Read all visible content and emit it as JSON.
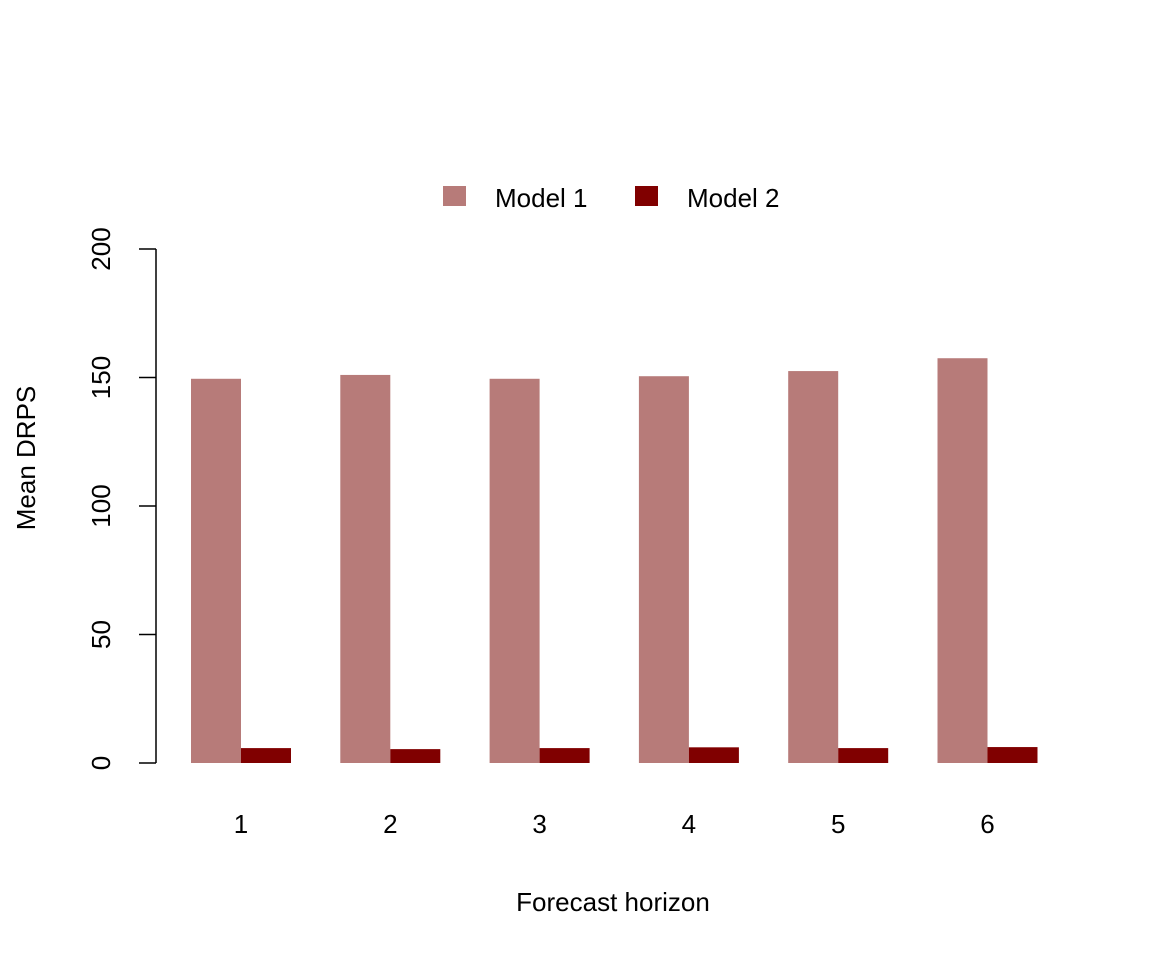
{
  "chart_data": {
    "type": "bar",
    "categories": [
      "1",
      "2",
      "3",
      "4",
      "5",
      "6"
    ],
    "series": [
      {
        "name": "Model 1",
        "color": "#B77B79",
        "values": [
          149.5,
          151,
          149.5,
          150.5,
          152.5,
          157.5
        ]
      },
      {
        "name": "Model 2",
        "color": "#800000",
        "values": [
          5.8,
          5.4,
          5.8,
          6.1,
          5.8,
          6.2
        ]
      }
    ],
    "title": "",
    "xlabel": "Forecast horizon",
    "ylabel": "Mean DRPS",
    "ylim": [
      0,
      200
    ],
    "yticks": [
      "0",
      "50",
      "100",
      "150",
      "200"
    ],
    "grid": false,
    "legend_position": "top-center"
  }
}
